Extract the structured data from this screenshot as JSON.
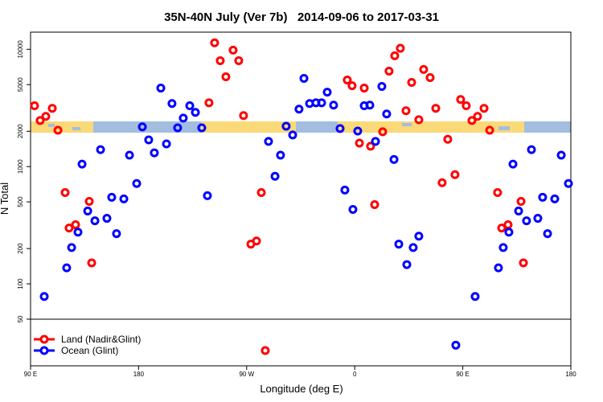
{
  "chart_data": {
    "type": "scatter",
    "title": "35N-40N July (Ver 7b)   2014-09-06 to 2017-03-31",
    "xlabel": "Longitude (deg E)",
    "ylabel": "N Total",
    "xlim": [
      90,
      540
    ],
    "ylim": [
      20,
      14000
    ],
    "log_y": true,
    "legend": "lower left",
    "xticks": [
      {
        "value": 90,
        "label": "90 E"
      },
      180,
      {
        "value": 270,
        "label": "90 W"
      },
      {
        "value": 360,
        "label": "0"
      },
      {
        "value": 450,
        "label": "90 E"
      },
      {
        "value": 540,
        "label": "180"
      }
    ],
    "yticks": [
      50,
      100,
      200,
      500,
      1000,
      2000,
      5000,
      10000
    ],
    "series": [
      {
        "name": "Land (Nadir&Glint)",
        "color": "#ff0000",
        "x": [
          93.3,
          98.0,
          102.7,
          108.1,
          112.8,
          118.8,
          122.1,
          127.5,
          138.9,
          140.9,
          238.6,
          243.3,
          248.0,
          252.7,
          258.7,
          263.4,
          267.4,
          273.5,
          278.2,
          282.2,
          285.5,
          353.8,
          357.8,
          363.9,
          367.9,
          373.2,
          376.6,
          383.3,
          388.6,
          393.3,
          398.0,
          402.7,
          407.4,
          413.4,
          417.4,
          422.8,
          427.5,
          432.8,
          437.5,
          443.5,
          448.2,
          452.9,
          457.6,
          462.3,
          467.7,
          472.4,
          479.0,
          482.4,
          487.7,
          498.5,
          500.5
        ],
        "values": [
          3300,
          2470,
          2680,
          3140,
          2040,
          600,
          299,
          319,
          505,
          151,
          3500,
          11350,
          8000,
          5830,
          9840,
          8000,
          2720,
          218,
          232,
          600,
          27,
          5470,
          4890,
          1585,
          4670,
          1490,
          474,
          1980,
          6510,
          8810,
          10200,
          2990,
          5220,
          2510,
          6730,
          5740,
          3140,
          728,
          1710,
          853,
          3730,
          3300,
          2470,
          2680,
          3140,
          2040,
          600,
          299,
          319,
          505,
          151
        ]
      },
      {
        "name": "Ocean (Glint)",
        "color": "#0000ff",
        "x": [
          101.4,
          120.1,
          124.2,
          129.5,
          132.9,
          137.6,
          143.6,
          148.3,
          153.6,
          157.6,
          161.6,
          167.7,
          172.4,
          178.4,
          183.1,
          188.4,
          193.1,
          198.5,
          203.2,
          207.8,
          212.5,
          217.2,
          222.6,
          227.3,
          232.6,
          237.3,
          288.2,
          293.6,
          298.2,
          302.9,
          308.3,
          313.6,
          317.7,
          322.4,
          327.7,
          332.4,
          337.1,
          342.4,
          347.8,
          351.8,
          358.5,
          362.5,
          367.9,
          372.6,
          377.3,
          382.6,
          386.6,
          392.7,
          396.7,
          403.4,
          408.7,
          413.4,
          444.2,
          460.3,
          479.7,
          483.7,
          488.4,
          491.8,
          496.5,
          503.1,
          507.2,
          512.5,
          516.5,
          520.6,
          526.6,
          532.0,
          538.0
        ],
        "values": [
          78,
          137,
          204,
          276,
          1050,
          418,
          345,
          1395,
          362,
          547,
          268,
          530,
          1250,
          717,
          2180,
          1690,
          1310,
          4670,
          1560,
          3450,
          2140,
          2590,
          3300,
          2900,
          2140,
          565,
          1640,
          826,
          1250,
          2210,
          1860,
          3090,
          5650,
          3450,
          3500,
          3500,
          4310,
          3340,
          2110,
          631,
          431,
          2010,
          3300,
          3340,
          1640,
          4820,
          2810,
          1150,
          218,
          146,
          204,
          255,
          30,
          78,
          137,
          204,
          276,
          1050,
          418,
          345,
          1395,
          362,
          547,
          268,
          530,
          1250,
          717
        ]
      }
    ]
  }
}
